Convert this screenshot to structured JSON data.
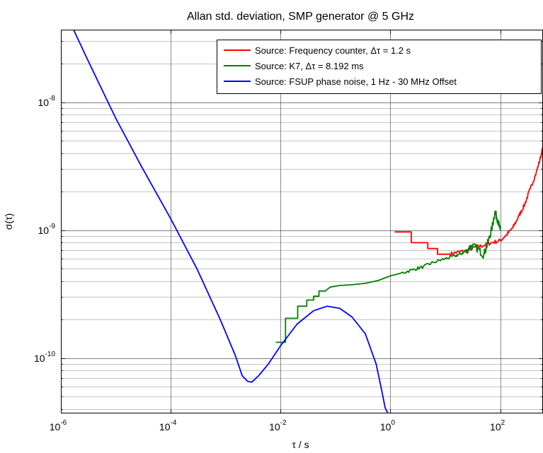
{
  "chart_data": {
    "type": "line",
    "title": "Allan std. deviation, SMP generator @ 5 GHz",
    "xlabel": "τ / s",
    "ylabel": "σ(τ)",
    "xscale": "log",
    "yscale": "log",
    "xlim": [
      1e-06,
      600
    ],
    "ylim": [
      3.7e-11,
      3.7e-08
    ],
    "grid": true,
    "legend_position": "top-right",
    "x_ticks": [
      {
        "base": "10",
        "exp": "-6",
        "value": 1e-06
      },
      {
        "base": "10",
        "exp": "-4",
        "value": 0.0001
      },
      {
        "base": "10",
        "exp": "-2",
        "value": 0.01
      },
      {
        "base": "10",
        "exp": "0",
        "value": 1
      },
      {
        "base": "10",
        "exp": "2",
        "value": 100
      }
    ],
    "y_ticks": [
      {
        "base": "10",
        "exp": "-8",
        "value": 1e-08
      },
      {
        "base": "10",
        "exp": "-9",
        "value": 1e-09
      },
      {
        "base": "10",
        "exp": "-10",
        "value": 1e-10
      }
    ],
    "series": [
      {
        "name": "Source: Frequency counter, Δτ = 1.2 s",
        "color": "#ff0000",
        "points": [
          [
            1.2,
            9.7e-10
          ],
          [
            2.4,
            9.7e-10
          ],
          [
            2.4,
            8e-10
          ],
          [
            4.8,
            8e-10
          ],
          [
            4.8,
            7.2e-10
          ],
          [
            7.2,
            7.2e-10
          ],
          [
            7.2,
            6.5e-10
          ],
          [
            12,
            6.5e-10
          ],
          [
            18,
            6.8e-10
          ],
          [
            25,
            6.9e-10
          ],
          [
            35,
            7.4e-10
          ],
          [
            50,
            7.6e-10
          ],
          [
            70,
            8e-10
          ],
          [
            100,
            8.3e-10
          ],
          [
            130,
            9.2e-10
          ],
          [
            170,
            1.05e-09
          ],
          [
            220,
            1.3e-09
          ],
          [
            280,
            1.6e-09
          ],
          [
            350,
            2.1e-09
          ],
          [
            450,
            2.8e-09
          ],
          [
            560,
            3.9e-09
          ],
          [
            600,
            4.5e-09
          ]
        ]
      },
      {
        "name": "Source: K7, Δτ = 8.192 ms",
        "color": "#008000",
        "points": [
          [
            0.0082,
            1.33e-10
          ],
          [
            0.0123,
            1.33e-10
          ],
          [
            0.0123,
            2.05e-10
          ],
          [
            0.0205,
            2.05e-10
          ],
          [
            0.0205,
            2.55e-10
          ],
          [
            0.03,
            2.55e-10
          ],
          [
            0.03,
            2.85e-10
          ],
          [
            0.04,
            2.85e-10
          ],
          [
            0.04,
            3.05e-10
          ],
          [
            0.05,
            3.05e-10
          ],
          [
            0.05,
            3.35e-10
          ],
          [
            0.065,
            3.35e-10
          ],
          [
            0.08,
            3.6e-10
          ],
          [
            0.12,
            3.7e-10
          ],
          [
            0.2,
            3.75e-10
          ],
          [
            0.35,
            3.85e-10
          ],
          [
            0.6,
            4.05e-10
          ],
          [
            1,
            4.4e-10
          ],
          [
            1.5,
            4.6e-10
          ],
          [
            2.5,
            4.9e-10
          ],
          [
            4,
            5.2e-10
          ],
          [
            6,
            5.6e-10
          ],
          [
            10,
            6e-10
          ],
          [
            15,
            6.3e-10
          ],
          [
            20,
            6.6e-10
          ],
          [
            25,
            7e-10
          ],
          [
            30,
            7.6e-10
          ],
          [
            40,
            7.1e-10
          ],
          [
            50,
            6.4e-10
          ],
          [
            60,
            8.1e-10
          ],
          [
            70,
            1.02e-09
          ],
          [
            80,
            1.4e-09
          ],
          [
            90,
            1.2e-09
          ],
          [
            100,
            1e-09
          ]
        ]
      },
      {
        "name": "Source: FSUP phase noise, 1 Hz - 30 MHz Offset",
        "color": "#0000ff",
        "points": [
          [
            1.7e-06,
            3.7e-08
          ],
          [
            3e-06,
            2.2e-08
          ],
          [
            1e-05,
            7.5e-09
          ],
          [
            3e-05,
            3.1e-09
          ],
          [
            0.0001,
            1.23e-09
          ],
          [
            0.0003,
            5e-10
          ],
          [
            0.0008,
            2e-10
          ],
          [
            0.0015,
            1.05e-10
          ],
          [
            0.002,
            7.3e-11
          ],
          [
            0.0025,
            6.6e-11
          ],
          [
            0.003,
            6.5e-11
          ],
          [
            0.004,
            7.3e-11
          ],
          [
            0.006,
            9e-11
          ],
          [
            0.01,
            1.25e-10
          ],
          [
            0.02,
            1.85e-10
          ],
          [
            0.04,
            2.35e-10
          ],
          [
            0.07,
            2.55e-10
          ],
          [
            0.12,
            2.45e-10
          ],
          [
            0.2,
            2.1e-10
          ],
          [
            0.35,
            1.55e-10
          ],
          [
            0.55,
            9e-11
          ],
          [
            0.7,
            5.5e-11
          ],
          [
            0.8,
            4.1e-11
          ],
          [
            0.9,
            3.7e-11
          ]
        ]
      }
    ]
  }
}
